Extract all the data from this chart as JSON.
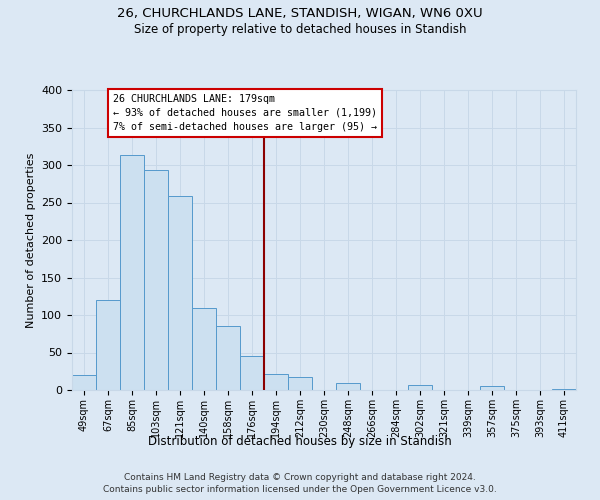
{
  "title1": "26, CHURCHLANDS LANE, STANDISH, WIGAN, WN6 0XU",
  "title2": "Size of property relative to detached houses in Standish",
  "xlabel": "Distribution of detached houses by size in Standish",
  "ylabel": "Number of detached properties",
  "bar_labels": [
    "49sqm",
    "67sqm",
    "85sqm",
    "103sqm",
    "121sqm",
    "140sqm",
    "158sqm",
    "176sqm",
    "194sqm",
    "212sqm",
    "230sqm",
    "248sqm",
    "266sqm",
    "284sqm",
    "302sqm",
    "321sqm",
    "339sqm",
    "357sqm",
    "375sqm",
    "393sqm",
    "411sqm"
  ],
  "bar_values": [
    20,
    120,
    313,
    293,
    259,
    110,
    85,
    45,
    22,
    17,
    0,
    9,
    0,
    0,
    7,
    0,
    0,
    5,
    0,
    0,
    2
  ],
  "bar_color": "#cce0f0",
  "bar_edge_color": "#5599cc",
  "property_label": "26 CHURCHLANDS LANE: 179sqm",
  "annotation_line1": "← 93% of detached houses are smaller (1,199)",
  "annotation_line2": "7% of semi-detached houses are larger (95) →",
  "vline_color": "#8b0000",
  "vline_x_index": 7.5,
  "annotation_box_color": "#ffffff",
  "annotation_box_edge": "#cc0000",
  "ylim": [
    0,
    400
  ],
  "yticks": [
    0,
    50,
    100,
    150,
    200,
    250,
    300,
    350,
    400
  ],
  "grid_color": "#c8d8e8",
  "bg_color": "#dce8f4",
  "footer1": "Contains HM Land Registry data © Crown copyright and database right 2024.",
  "footer2": "Contains public sector information licensed under the Open Government Licence v3.0."
}
